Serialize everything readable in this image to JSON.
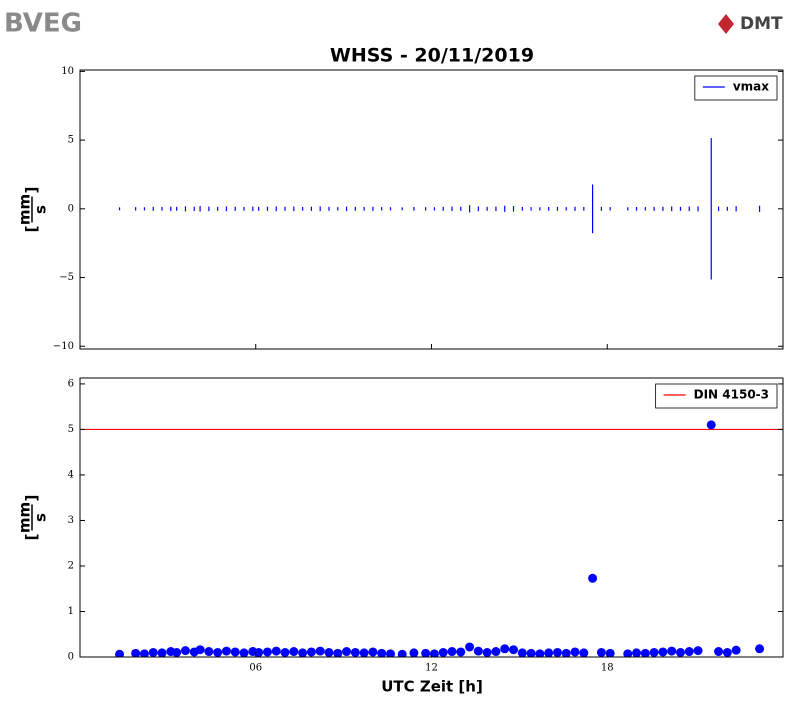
{
  "logos": {
    "left": "BVEG",
    "right": "DMT"
  },
  "chart_data": [
    {
      "type": "vlines",
      "title": "WHSS - 20/11/2019",
      "y_label_numerator": "mm",
      "y_label_denominator": "s",
      "xlim": [
        0,
        24
      ],
      "ylim": [
        -10.2,
        10.1
      ],
      "yticks": [
        {
          "value": -10,
          "label": "−10"
        },
        {
          "value": -5,
          "label": "−5"
        },
        0,
        5,
        10
      ],
      "legend": "upper right",
      "series": [
        {
          "name": "vmax",
          "color": "#0000ff",
          "x": [
            1.35,
            1.9,
            2.2,
            2.5,
            2.8,
            3.1,
            3.3,
            3.6,
            3.9,
            4.1,
            4.4,
            4.7,
            5.0,
            5.3,
            5.6,
            5.9,
            6.1,
            6.4,
            6.7,
            7.0,
            7.3,
            7.6,
            7.9,
            8.2,
            8.5,
            8.8,
            9.1,
            9.4,
            9.7,
            10.0,
            10.3,
            10.6,
            11.0,
            11.4,
            11.8,
            12.1,
            12.4,
            12.7,
            13.0,
            13.3,
            13.6,
            13.9,
            14.2,
            14.5,
            14.8,
            15.1,
            15.4,
            15.7,
            16.0,
            16.3,
            16.6,
            16.9,
            17.2,
            17.5,
            17.8,
            18.1,
            18.7,
            19.0,
            19.3,
            19.6,
            19.9,
            20.2,
            20.5,
            20.8,
            21.1,
            21.55,
            21.8,
            22.1,
            22.4,
            23.2
          ],
          "values": [
            0.06,
            0.08,
            0.07,
            0.1,
            0.09,
            0.12,
            0.1,
            0.14,
            0.11,
            0.16,
            0.12,
            0.1,
            0.13,
            0.11,
            0.09,
            0.12,
            0.1,
            0.11,
            0.13,
            0.1,
            0.12,
            0.09,
            0.11,
            0.13,
            0.1,
            0.08,
            0.12,
            0.1,
            0.09,
            0.11,
            0.08,
            0.07,
            0.06,
            0.09,
            0.08,
            0.07,
            0.1,
            0.12,
            0.11,
            0.22,
            0.13,
            0.1,
            0.12,
            0.18,
            0.16,
            0.09,
            0.08,
            0.07,
            0.09,
            0.1,
            0.08,
            0.11,
            0.09,
            1.73,
            0.1,
            0.08,
            0.07,
            0.09,
            0.08,
            0.1,
            0.11,
            0.13,
            0.1,
            0.12,
            0.14,
            5.1,
            0.12,
            0.1,
            0.15,
            0.18
          ]
        }
      ]
    },
    {
      "type": "scatter",
      "x_label": "UTC Zeit [h]",
      "y_label_numerator": "mm",
      "y_label_denominator": "s",
      "xlim": [
        0,
        24
      ],
      "ylim": [
        0,
        6.13
      ],
      "xticks": [
        {
          "value": 6,
          "label": "06"
        },
        {
          "value": 12,
          "label": "12"
        },
        {
          "value": 18,
          "label": "18"
        }
      ],
      "yticks": [
        0,
        1,
        2,
        3,
        4,
        5,
        6
      ],
      "legend": "upper right",
      "hlines": [
        {
          "name": "DIN 4150-3",
          "y": 5,
          "color": "#ff0000"
        }
      ],
      "series": [
        {
          "color": "#0000ff",
          "x": [
            1.35,
            1.9,
            2.2,
            2.5,
            2.8,
            3.1,
            3.3,
            3.6,
            3.9,
            4.1,
            4.4,
            4.7,
            5.0,
            5.3,
            5.6,
            5.9,
            6.1,
            6.4,
            6.7,
            7.0,
            7.3,
            7.6,
            7.9,
            8.2,
            8.5,
            8.8,
            9.1,
            9.4,
            9.7,
            10.0,
            10.3,
            10.6,
            11.0,
            11.4,
            11.8,
            12.1,
            12.4,
            12.7,
            13.0,
            13.3,
            13.6,
            13.9,
            14.2,
            14.5,
            14.8,
            15.1,
            15.4,
            15.7,
            16.0,
            16.3,
            16.6,
            16.9,
            17.2,
            17.5,
            17.8,
            18.1,
            18.7,
            19.0,
            19.3,
            19.6,
            19.9,
            20.2,
            20.5,
            20.8,
            21.1,
            21.55,
            21.8,
            22.1,
            22.4,
            23.2
          ],
          "values": [
            0.06,
            0.08,
            0.07,
            0.1,
            0.09,
            0.12,
            0.1,
            0.14,
            0.11,
            0.16,
            0.12,
            0.1,
            0.13,
            0.11,
            0.09,
            0.12,
            0.1,
            0.11,
            0.13,
            0.1,
            0.12,
            0.09,
            0.11,
            0.13,
            0.1,
            0.08,
            0.12,
            0.1,
            0.09,
            0.11,
            0.08,
            0.07,
            0.06,
            0.09,
            0.08,
            0.07,
            0.1,
            0.12,
            0.11,
            0.22,
            0.13,
            0.1,
            0.12,
            0.18,
            0.16,
            0.09,
            0.08,
            0.07,
            0.09,
            0.1,
            0.08,
            0.11,
            0.09,
            1.73,
            0.1,
            0.08,
            0.07,
            0.09,
            0.08,
            0.1,
            0.11,
            0.13,
            0.1,
            0.12,
            0.14,
            5.1,
            0.12,
            0.1,
            0.15,
            0.18
          ]
        }
      ]
    }
  ]
}
